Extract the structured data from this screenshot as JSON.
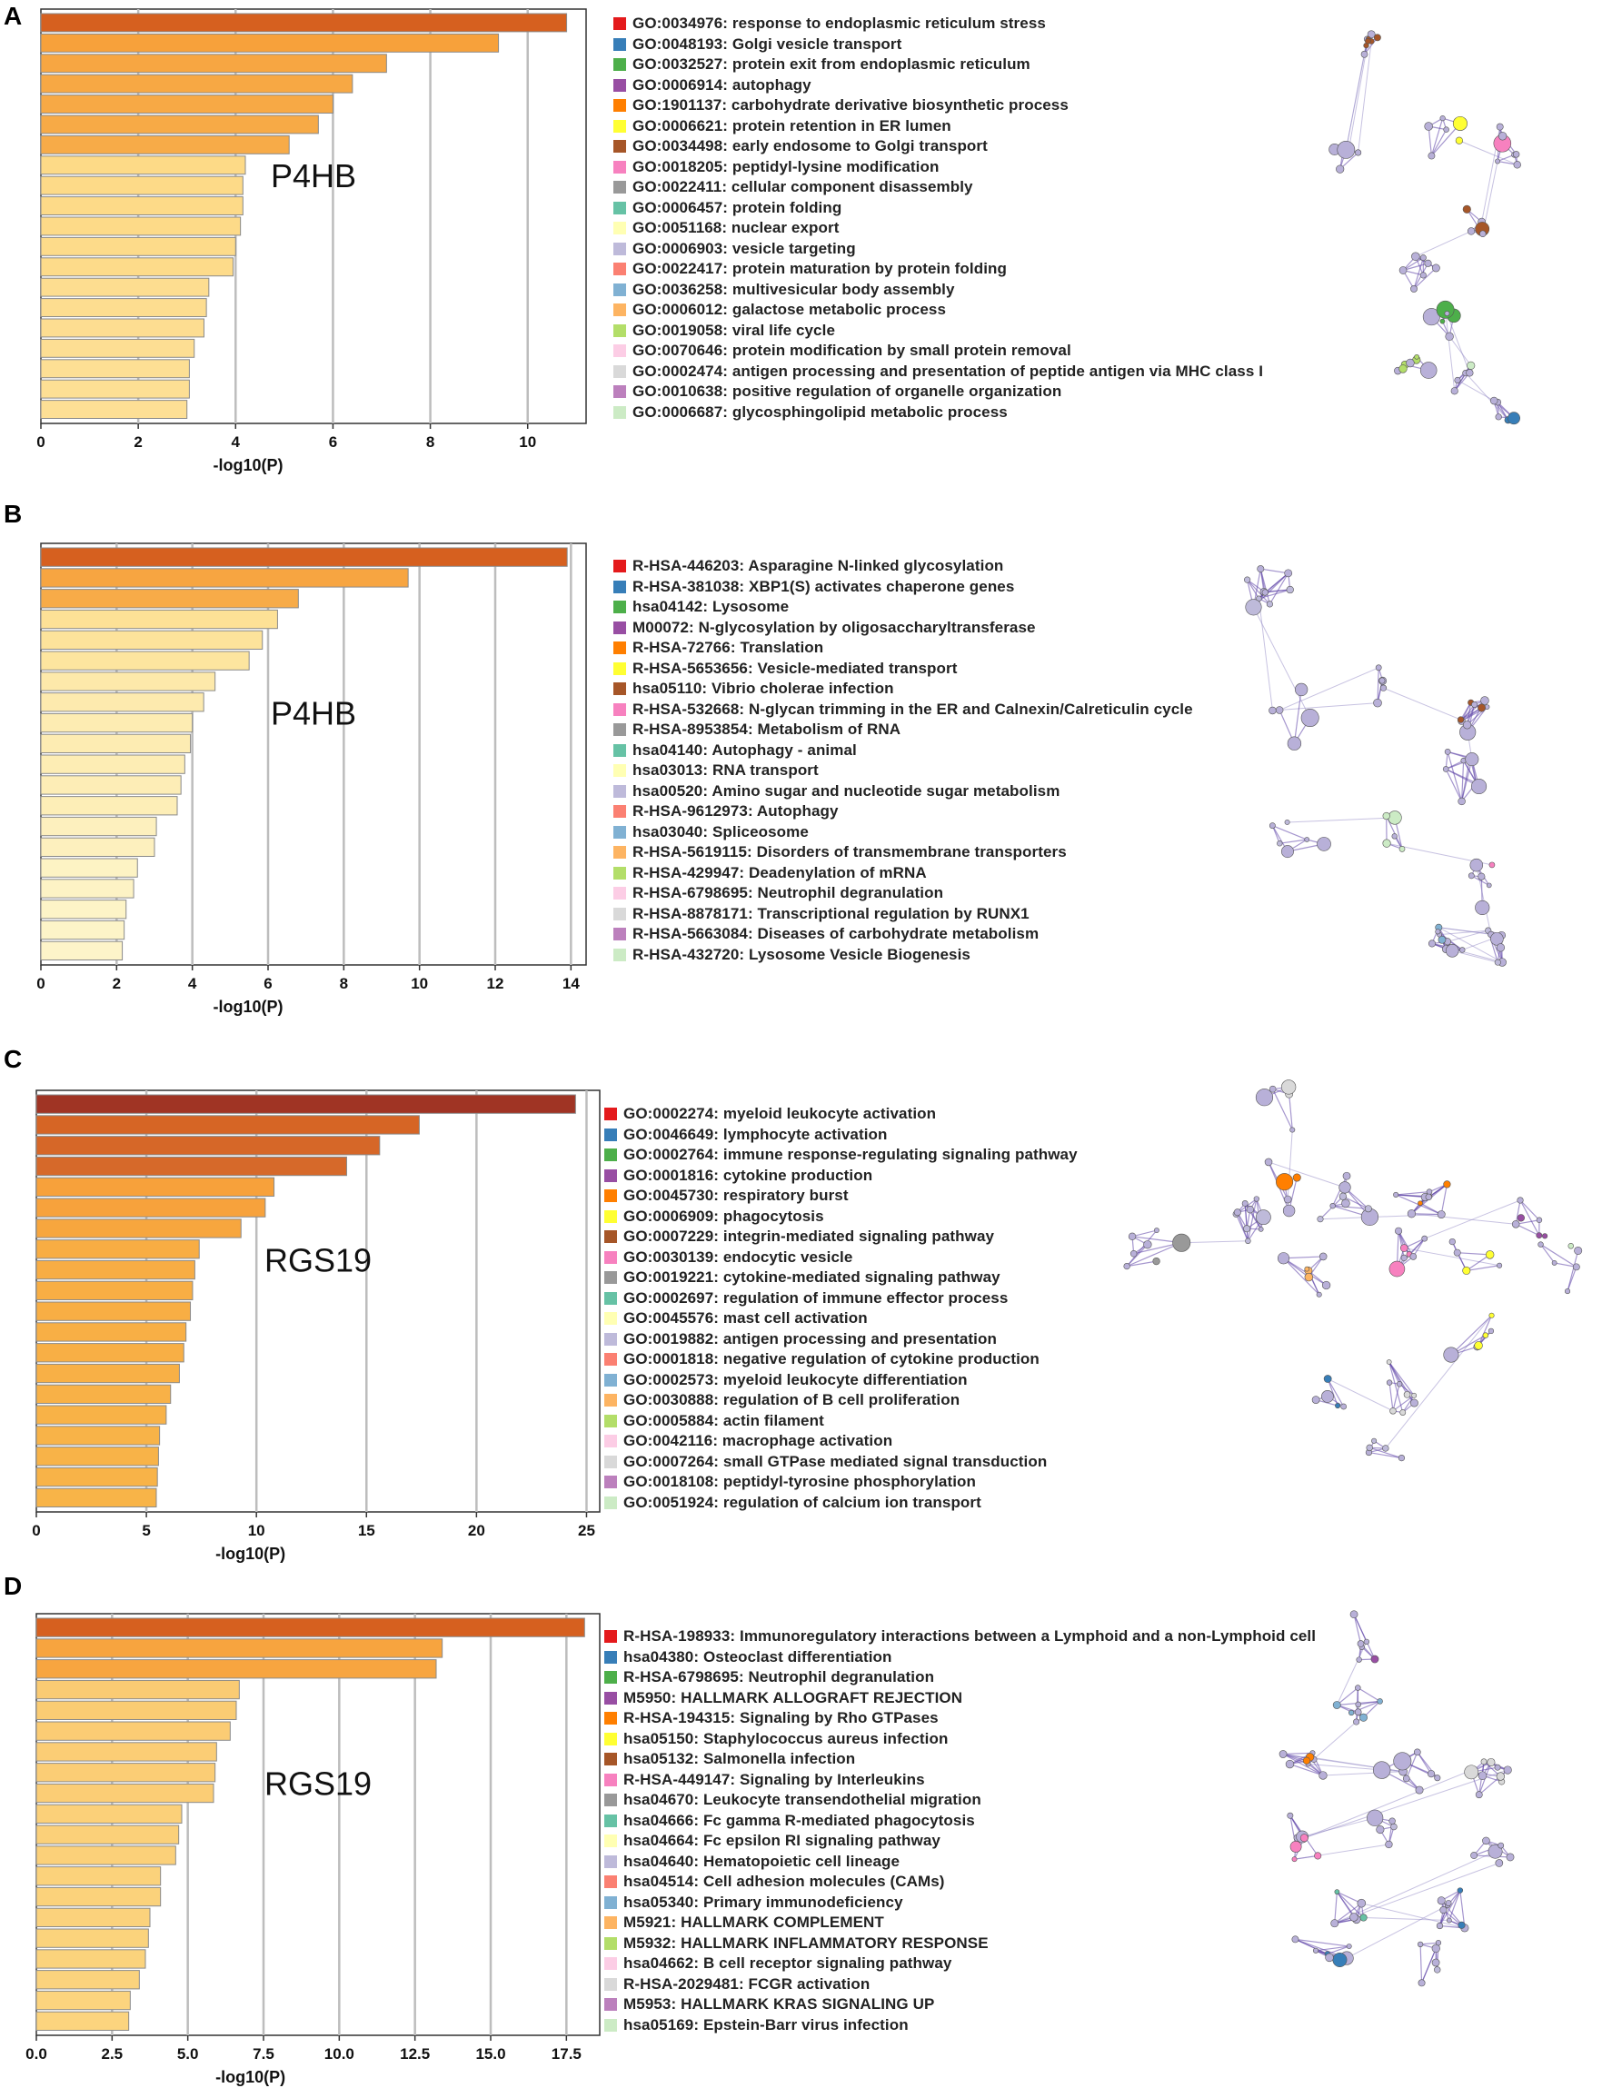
{
  "panels": [
    {
      "letter": "A",
      "gene": "P4HB",
      "xlabel": "-log10(P)",
      "legend_clip": false
    },
    {
      "letter": "B",
      "gene": "P4HB",
      "xlabel": "-log10(P)",
      "legend_clip": false
    },
    {
      "letter": "C",
      "gene": "RGS19",
      "xlabel": "-log10(P)",
      "legend_clip": true
    },
    {
      "letter": "D",
      "gene": "RGS19",
      "xlabel": "-log10(P)",
      "legend_clip": false
    }
  ],
  "legend_colors": [
    "#e41a1c",
    "#377eb8",
    "#4daf4a",
    "#984ea3",
    "#ff7f00",
    "#ffff33",
    "#a65628",
    "#f781bf",
    "#999999",
    "#66c2a5",
    "#ffffb3",
    "#bebada",
    "#fb8072",
    "#80b1d3",
    "#fdb462",
    "#b3de69",
    "#fccde5",
    "#d9d9d9",
    "#bc80bd",
    "#ccebc5"
  ],
  "chart_data": [
    {
      "type": "bar",
      "orientation": "horizontal",
      "title": "P4HB",
      "xlabel": "-log10(P)",
      "xlim": [
        0,
        11.2
      ],
      "xticks": [
        0,
        2,
        4,
        6,
        8,
        10
      ],
      "xtick_labels": [
        "0",
        "2",
        "4",
        "6",
        "8",
        "10"
      ],
      "categories": [
        "GO:0034976: response to endoplasmic reticulum stress",
        "GO:0048193: Golgi vesicle transport",
        "GO:0032527: protein exit from endoplasmic reticulum",
        "GO:0006914: autophagy",
        "GO:1901137: carbohydrate derivative biosynthetic process",
        "GO:0006621: protein retention in ER lumen",
        "GO:0034498: early endosome to Golgi transport",
        "GO:0018205: peptidyl-lysine modification",
        "GO:0022411: cellular component disassembly",
        "GO:0006457: protein folding",
        "GO:0051168: nuclear export",
        "GO:0006903: vesicle targeting",
        "GO:0022417: protein maturation by protein folding",
        "GO:0036258: multivesicular body assembly",
        "GO:0006012: galactose metabolic process",
        "GO:0019058: viral life cycle",
        "GO:0070646: protein modification by small protein removal",
        "GO:0002474: antigen processing and presentation of peptide antigen via MHC class I",
        "GO:0010638: positive regulation of organelle organization",
        "GO:0006687: glycosphingolipid metabolic process"
      ],
      "values": [
        10.8,
        9.4,
        7.1,
        6.4,
        6.0,
        5.7,
        5.1,
        4.2,
        4.15,
        4.15,
        4.1,
        4.0,
        3.95,
        3.45,
        3.4,
        3.35,
        3.15,
        3.05,
        3.05,
        3.0
      ]
    },
    {
      "type": "bar",
      "orientation": "horizontal",
      "title": "P4HB",
      "xlabel": "-log10(P)",
      "xlim": [
        0,
        14.4
      ],
      "xticks": [
        0,
        2,
        4,
        6,
        8,
        10,
        12,
        14
      ],
      "xtick_labels": [
        "0",
        "2",
        "4",
        "6",
        "8",
        "10",
        "12",
        "14"
      ],
      "categories": [
        "R-HSA-446203: Asparagine N-linked glycosylation",
        "R-HSA-381038: XBP1(S) activates chaperone genes",
        "hsa04142: Lysosome",
        "M00072: N-glycosylation by oligosaccharyltransferase",
        "R-HSA-72766: Translation",
        "R-HSA-5653656: Vesicle-mediated transport",
        "hsa05110: Vibrio cholerae infection",
        "R-HSA-532668: N-glycan trimming in the ER and Calnexin/Calreticulin cycle",
        "R-HSA-8953854: Metabolism of RNA",
        "hsa04140: Autophagy - animal",
        "hsa03013: RNA transport",
        "hsa00520: Amino sugar and nucleotide sugar metabolism",
        "R-HSA-9612973: Autophagy",
        "hsa03040: Spliceosome",
        "R-HSA-5619115: Disorders of transmembrane transporters",
        "R-HSA-429947: Deadenylation of mRNA",
        "R-HSA-6798695: Neutrophil degranulation",
        "R-HSA-8878171: Transcriptional regulation by RUNX1",
        "R-HSA-5663084: Diseases of carbohydrate metabolism",
        "R-HSA-432720: Lysosome Vesicle Biogenesis"
      ],
      "values": [
        13.9,
        9.7,
        6.8,
        6.25,
        5.85,
        5.5,
        4.6,
        4.3,
        4.0,
        3.95,
        3.8,
        3.7,
        3.6,
        3.05,
        3.0,
        2.55,
        2.45,
        2.25,
        2.2,
        2.15
      ]
    },
    {
      "type": "bar",
      "orientation": "horizontal",
      "title": "RGS19",
      "xlabel": "-log10(P)",
      "xlim": [
        0,
        25.6
      ],
      "xticks": [
        0,
        5,
        10,
        15,
        20,
        25
      ],
      "xtick_labels": [
        "0",
        "5",
        "10",
        "15",
        "20",
        "25"
      ],
      "categories": [
        "GO:0002274: myeloid leukocyte activation",
        "GO:0046649: lymphocyte activation",
        "GO:0002764: immune response-regulating signaling pathway",
        "GO:0001816: cytokine production",
        "GO:0045730: respiratory burst",
        "GO:0006909: phagocytosis",
        "GO:0007229: integrin-mediated signaling pathway",
        "GO:0030139: endocytic vesicle",
        "GO:0019221: cytokine-mediated signaling pathway",
        "GO:0002697: regulation of immune effector process",
        "GO:0045576: mast cell activation",
        "GO:0019882: antigen processing and presentation",
        "GO:0001818: negative regulation of cytokine production",
        "GO:0002573: myeloid leukocyte differentiation",
        "GO:0030888: regulation of B cell proliferation",
        "GO:0005884: actin filament",
        "GO:0042116: macrophage activation",
        "GO:0007264: small GTPase mediated signal transduction",
        "GO:0018108: peptidyl-tyrosine phosphorylation",
        "GO:0051924: regulation of calcium ion transport"
      ],
      "values": [
        24.5,
        17.4,
        15.6,
        14.1,
        10.8,
        10.4,
        9.3,
        7.4,
        7.2,
        7.1,
        7.0,
        6.8,
        6.7,
        6.5,
        6.1,
        5.9,
        5.6,
        5.55,
        5.5,
        5.45
      ]
    },
    {
      "type": "bar",
      "orientation": "horizontal",
      "title": "RGS19",
      "xlabel": "-log10(P)",
      "xlim": [
        0,
        18.6
      ],
      "xticks": [
        0,
        2.5,
        5,
        7.5,
        10,
        12.5,
        15,
        17.5
      ],
      "xtick_labels": [
        "0.0",
        "2.5",
        "5.0",
        "7.5",
        "10.0",
        "12.5",
        "15.0",
        "17.5"
      ],
      "categories": [
        "R-HSA-198933: Immunoregulatory interactions between a Lymphoid and a non-Lymphoid cell",
        "hsa04380: Osteoclast differentiation",
        "R-HSA-6798695: Neutrophil degranulation",
        "M5950: HALLMARK ALLOGRAFT REJECTION",
        "R-HSA-194315: Signaling by Rho GTPases",
        "hsa05150: Staphylococcus aureus infection",
        "hsa05132: Salmonella infection",
        "R-HSA-449147: Signaling by Interleukins",
        "hsa04670: Leukocyte transendothelial migration",
        "hsa04666: Fc gamma R-mediated phagocytosis",
        "hsa04664: Fc epsilon RI signaling pathway",
        "hsa04640: Hematopoietic cell lineage",
        "hsa04514: Cell adhesion molecules (CAMs)",
        "hsa05340: Primary immunodeficiency",
        "M5921: HALLMARK COMPLEMENT",
        "M5932: HALLMARK INFLAMMATORY RESPONSE",
        "hsa04662: B cell receptor signaling pathway",
        "R-HSA-2029481: FCGR activation",
        "M5953: HALLMARK KRAS SIGNALING UP",
        "hsa05169: Epstein-Barr virus infection"
      ],
      "values": [
        18.1,
        13.4,
        13.2,
        6.7,
        6.6,
        6.4,
        5.95,
        5.9,
        5.85,
        4.8,
        4.7,
        4.6,
        4.1,
        4.1,
        3.75,
        3.7,
        3.6,
        3.4,
        3.1,
        3.05
      ]
    }
  ]
}
